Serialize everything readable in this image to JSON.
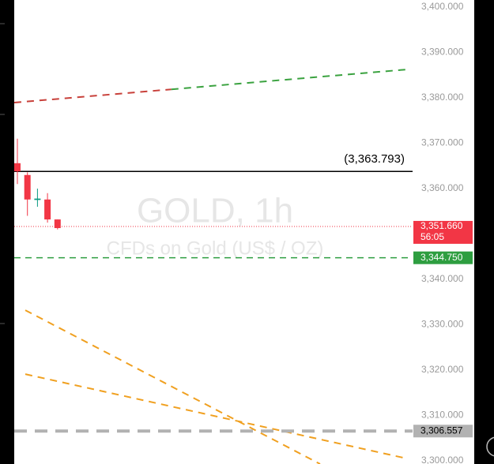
{
  "chart_data": {
    "type": "candlestick",
    "watermark_title": "GOLD, 1h",
    "watermark_subtitle": "CFDs on Gold (US$ / OZ)",
    "ylim": [
      3299.3,
      3401.57
    ],
    "yticks": [
      {
        "value": 3300,
        "label": "3,300.000"
      },
      {
        "value": 3310,
        "label": "3,310.000"
      },
      {
        "value": 3320,
        "label": "3,320.000"
      },
      {
        "value": 3330,
        "label": "3,330.000"
      },
      {
        "value": 3340,
        "label": "3,340.000"
      },
      {
        "value": 3350,
        "label": "3,350.000"
      },
      {
        "value": 3360,
        "label": "3,360.000"
      },
      {
        "value": 3370,
        "label": "3,370.000"
      },
      {
        "value": 3380,
        "label": "3,380.000"
      },
      {
        "value": 3390,
        "label": "3,390.000"
      },
      {
        "value": 3400,
        "label": "3,400.000"
      }
    ],
    "candles": {
      "open": [
        3365.6,
        3363.0,
        3357.5,
        3357.6,
        3353.2
      ],
      "high": [
        3371.0,
        3363.6,
        3360.0,
        3359.0,
        3353.2
      ],
      "low": [
        3361.0,
        3354.0,
        3356.0,
        3352.5,
        3351.0
      ],
      "close": [
        3363.8,
        3357.6,
        3357.8,
        3353.2,
        3351.3
      ],
      "up_color": "#089981",
      "down_color": "#f23645"
    },
    "resistance": {
      "value": 3363.793,
      "label": "(3,363.793)",
      "color": "#000000"
    },
    "current_price": {
      "value": 3351.66,
      "label": "3,351.660",
      "countdown": "56:05",
      "color": "#f23645"
    },
    "support": {
      "value": 3344.75,
      "label": "3,344.750",
      "color": "#2e9e40"
    },
    "level": {
      "value": 3306.557,
      "label": "3,306.557",
      "color": "#b2b2b2"
    },
    "trendlines": [
      {
        "start": 3378.96,
        "end": 3386.26,
        "colors": [
          "#c8403a",
          "#3aa23f"
        ]
      },
      {
        "start": 3333.2,
        "end": 3299.3,
        "colors": [
          "#f0a020"
        ]
      },
      {
        "start": 3319.1,
        "end": 3300.5,
        "colors": [
          "#f0a020"
        ]
      }
    ]
  }
}
